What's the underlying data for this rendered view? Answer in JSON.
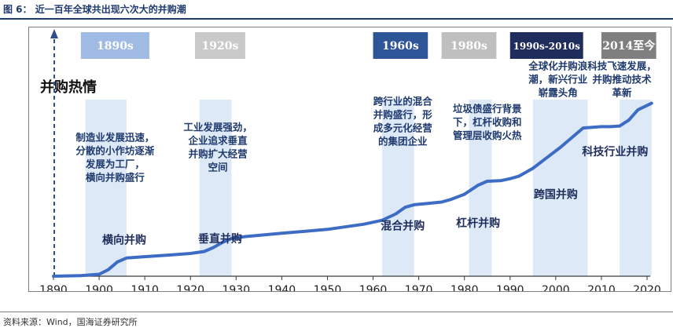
{
  "figure": {
    "title": "图 6：  近一百年全球共出现六次大的并购潮"
  },
  "chart_data": {
    "type": "line",
    "ylabel": "并购热情",
    "x_ticks": [
      1890,
      1900,
      1910,
      1920,
      1930,
      1940,
      1950,
      1960,
      1970,
      1980,
      1990,
      2000,
      2010,
      2020
    ],
    "xlim": [
      1890,
      2022
    ],
    "series": [
      {
        "points": [
          [
            1890,
            0
          ],
          [
            1896,
            0.5
          ],
          [
            1900,
            1.5
          ],
          [
            1902,
            5
          ],
          [
            1904,
            11
          ],
          [
            1906,
            14
          ],
          [
            1910,
            15
          ],
          [
            1916,
            16.5
          ],
          [
            1920,
            17.5
          ],
          [
            1923,
            19
          ],
          [
            1925,
            22
          ],
          [
            1927,
            26
          ],
          [
            1929,
            29
          ],
          [
            1932,
            30.5
          ],
          [
            1940,
            33
          ],
          [
            1950,
            36
          ],
          [
            1958,
            40
          ],
          [
            1962,
            43
          ],
          [
            1965,
            48
          ],
          [
            1967,
            53
          ],
          [
            1969,
            55
          ],
          [
            1972,
            56
          ],
          [
            1975,
            57
          ],
          [
            1977,
            59
          ],
          [
            1980,
            63
          ],
          [
            1983,
            70
          ],
          [
            1985,
            73
          ],
          [
            1988,
            73.5
          ],
          [
            1990,
            75
          ],
          [
            1992,
            77
          ],
          [
            1995,
            83
          ],
          [
            1998,
            91
          ],
          [
            2001,
            99
          ],
          [
            2004,
            108
          ],
          [
            2006,
            114
          ],
          [
            2010,
            115
          ],
          [
            2012,
            115
          ],
          [
            2014,
            115.5
          ],
          [
            2016,
            120
          ],
          [
            2018,
            128
          ],
          [
            2021,
            133
          ]
        ]
      }
    ],
    "shaded_periods": [
      {
        "start": 1897,
        "end": 1906
      },
      {
        "start": 1922,
        "end": 1929
      },
      {
        "start": 1962,
        "end": 1969
      },
      {
        "start": 1981,
        "end": 1986
      },
      {
        "start": 1995,
        "end": 2007
      },
      {
        "start": 2014,
        "end": 2021
      }
    ],
    "wave_labels": [
      {
        "text": "横向并购",
        "x": 1905.5,
        "y": 25
      },
      {
        "text": "垂直并购",
        "x": 1926.5,
        "y": 26
      },
      {
        "text": "混合并购",
        "x": 1966.5,
        "y": 36
      },
      {
        "text": "杠杆并购",
        "x": 1983,
        "y": 38
      },
      {
        "text": "跨国并购",
        "x": 2000,
        "y": 60
      },
      {
        "text": "科技行业并购",
        "x": 2013,
        "y": 93
      }
    ],
    "annotations": [
      {
        "lines": [
          "制造业发展迅速，",
          "分散的小作坊逐渐",
          "发展为工厂，",
          "横向并购盛行"
        ],
        "x": 1903.5,
        "y": 104
      },
      {
        "lines": [
          "工业发展强劲，",
          "企业追求垂直",
          "并购扩大经营",
          "空间"
        ],
        "x": 1926,
        "y": 112
      },
      {
        "lines": [
          "跨行业的混合",
          "并购盛行，形",
          "成多元化经营",
          "的集团企业"
        ],
        "x": 1966.5,
        "y": 132
      },
      {
        "lines": [
          "垃圾债盛行背景",
          "下，杠杆收购和",
          "管理层收购火热"
        ],
        "x": 1985,
        "y": 126
      },
      {
        "lines": [
          "全球化并购浪",
          "潮，新兴行业",
          "崭露头角"
        ],
        "x": 2000.5,
        "y": 159
      },
      {
        "lines": [
          "科技飞速发展，",
          "并购推动技术",
          "革新"
        ],
        "x": 2014.5,
        "y": 159
      }
    ],
    "era_boxes": [
      {
        "label": "1890s",
        "fill": "#9fbbe3",
        "text_color": "#ffffff",
        "xs": 1896,
        "xe": 1911
      },
      {
        "label": "1920s",
        "fill": "#c9c9c9",
        "text_color": "#ffffff",
        "xs": 1921,
        "xe": 1932
      },
      {
        "label": "1960s",
        "fill": "#2e5597",
        "text_color": "#ffffff",
        "xs": 1960,
        "xe": 1972
      },
      {
        "label": "1980s",
        "fill": "#bfbfbf",
        "text_color": "#ffffff",
        "xs": 1975,
        "xe": 1987
      },
      {
        "label": "1990s-2010s",
        "fill": "#1f2d5c",
        "text_color": "#ffffff",
        "xs": 1990,
        "xe": 2006
      },
      {
        "label": "2014至今",
        "fill": "#7f7f7f",
        "text_color": "#ffffff",
        "xs": 2010,
        "xe": 2022
      }
    ],
    "colors": {
      "line": "#3d6cc5",
      "shade": "#dde9f7",
      "axis": "#3b3b3b",
      "dashed_axis": "#2f4f8a",
      "annotation_text": "#1f3a6e"
    },
    "grid": false,
    "legend": "none"
  },
  "footer": {
    "source": "资料来源：Wind，国海证券研究所"
  }
}
